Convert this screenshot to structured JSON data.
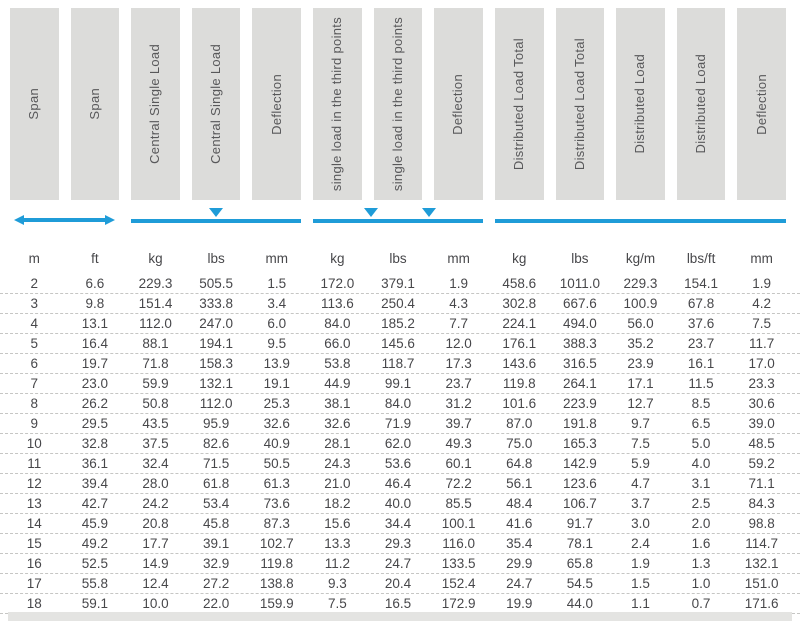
{
  "table": {
    "columns": [
      {
        "label": "Span",
        "unit": "m"
      },
      {
        "label": "Span",
        "unit": "ft"
      },
      {
        "label": "Central Single Load",
        "unit": "kg"
      },
      {
        "label": "Central Single Load",
        "unit": "lbs"
      },
      {
        "label": "Deflection",
        "unit": "mm"
      },
      {
        "label": "single load in the third points",
        "unit": "kg"
      },
      {
        "label": "single load in the third points",
        "unit": "lbs"
      },
      {
        "label": "Deflection",
        "unit": "mm"
      },
      {
        "label": "Distributed Load Total",
        "unit": "kg"
      },
      {
        "label": "Distributed Load Total",
        "unit": "lbs"
      },
      {
        "label": "Distributed Load",
        "unit": "kg/m"
      },
      {
        "label": "Distributed Load",
        "unit": "lbs/ft"
      },
      {
        "label": "Deflection",
        "unit": "mm"
      }
    ],
    "rows": [
      [
        "2",
        "6.6",
        "229.3",
        "505.5",
        "1.5",
        "172.0",
        "379.1",
        "1.9",
        "458.6",
        "1011.0",
        "229.3",
        "154.1",
        "1.9"
      ],
      [
        "3",
        "9.8",
        "151.4",
        "333.8",
        "3.4",
        "113.6",
        "250.4",
        "4.3",
        "302.8",
        "667.6",
        "100.9",
        "67.8",
        "4.2"
      ],
      [
        "4",
        "13.1",
        "112.0",
        "247.0",
        "6.0",
        "84.0",
        "185.2",
        "7.7",
        "224.1",
        "494.0",
        "56.0",
        "37.6",
        "7.5"
      ],
      [
        "5",
        "16.4",
        "88.1",
        "194.1",
        "9.5",
        "66.0",
        "145.6",
        "12.0",
        "176.1",
        "388.3",
        "35.2",
        "23.7",
        "11.7"
      ],
      [
        "6",
        "19.7",
        "71.8",
        "158.3",
        "13.9",
        "53.8",
        "118.7",
        "17.3",
        "143.6",
        "316.5",
        "23.9",
        "16.1",
        "17.0"
      ],
      [
        "7",
        "23.0",
        "59.9",
        "132.1",
        "19.1",
        "44.9",
        "99.1",
        "23.7",
        "119.8",
        "264.1",
        "17.1",
        "11.5",
        "23.3"
      ],
      [
        "8",
        "26.2",
        "50.8",
        "112.0",
        "25.3",
        "38.1",
        "84.0",
        "31.2",
        "101.6",
        "223.9",
        "12.7",
        "8.5",
        "30.6"
      ],
      [
        "9",
        "29.5",
        "43.5",
        "95.9",
        "32.6",
        "32.6",
        "71.9",
        "39.7",
        "87.0",
        "191.8",
        "9.7",
        "6.5",
        "39.0"
      ],
      [
        "10",
        "32.8",
        "37.5",
        "82.6",
        "40.9",
        "28.1",
        "62.0",
        "49.3",
        "75.0",
        "165.3",
        "7.5",
        "5.0",
        "48.5"
      ],
      [
        "11",
        "36.1",
        "32.4",
        "71.5",
        "50.5",
        "24.3",
        "53.6",
        "60.1",
        "64.8",
        "142.9",
        "5.9",
        "4.0",
        "59.2"
      ],
      [
        "12",
        "39.4",
        "28.0",
        "61.8",
        "61.3",
        "21.0",
        "46.4",
        "72.2",
        "56.1",
        "123.6",
        "4.7",
        "3.1",
        "71.1"
      ],
      [
        "13",
        "42.7",
        "24.2",
        "53.4",
        "73.6",
        "18.2",
        "40.0",
        "85.5",
        "48.4",
        "106.7",
        "3.7",
        "2.5",
        "84.3"
      ],
      [
        "14",
        "45.9",
        "20.8",
        "45.8",
        "87.3",
        "15.6",
        "34.4",
        "100.1",
        "41.6",
        "91.7",
        "3.0",
        "2.0",
        "98.8"
      ],
      [
        "15",
        "49.2",
        "17.7",
        "39.1",
        "102.7",
        "13.3",
        "29.3",
        "116.0",
        "35.4",
        "78.1",
        "2.4",
        "1.6",
        "114.7"
      ],
      [
        "16",
        "52.5",
        "14.9",
        "32.9",
        "119.8",
        "11.2",
        "24.7",
        "133.5",
        "29.9",
        "65.8",
        "1.9",
        "1.3",
        "132.1"
      ],
      [
        "17",
        "55.8",
        "12.4",
        "27.2",
        "138.8",
        "9.3",
        "20.4",
        "152.4",
        "24.7",
        "54.5",
        "1.5",
        "1.0",
        "151.0"
      ],
      [
        "18",
        "59.1",
        "10.0",
        "22.0",
        "159.9",
        "7.5",
        "16.5",
        "172.9",
        "19.9",
        "44.0",
        "1.1",
        "0.7",
        "171.6"
      ]
    ]
  },
  "indicators": {
    "span_group": {
      "columns": "1-2",
      "style": "double-headed-arrow"
    },
    "central_group": {
      "columns": "3-5",
      "style": "line-with-center-marker",
      "markers": 1
    },
    "third_points_group": {
      "columns": "6-8",
      "style": "line-with-third-point-markers",
      "markers": 2
    },
    "distributed_group": {
      "columns": "9-13",
      "style": "line",
      "markers": 0
    }
  },
  "colors": {
    "accent_blue": "#1f9cd8",
    "header_bg": "#dcdcda",
    "header_text": "#58585a",
    "data_text": "#47474a"
  }
}
